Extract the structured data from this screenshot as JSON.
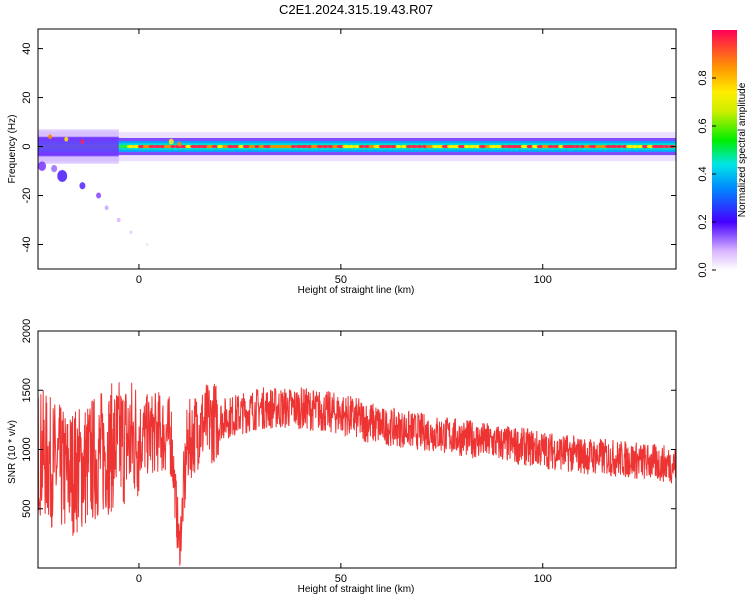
{
  "title": "C2E1.2024.315.19.43.R07",
  "chart_data": [
    {
      "type": "heatmap",
      "xlabel": "Height of straight line (km)",
      "ylabel": "Frequency (Hz)",
      "xlim": [
        -25,
        133
      ],
      "ylim": [
        -50,
        48
      ],
      "xticks": [
        "0",
        "50",
        "100"
      ],
      "yticks": [
        "-40",
        "-20",
        "0",
        "20",
        "40"
      ],
      "colorbar": {
        "label": "Normalized spectral amplitude",
        "range": [
          0.0,
          1.0
        ],
        "ticks": [
          "0.0",
          "0.2",
          "0.4",
          "0.6",
          "0.8"
        ]
      },
      "main_line_frequency_hz": 0,
      "grid": false
    },
    {
      "type": "line",
      "xlabel": "Height of straight line (km)",
      "ylabel": "SNR (10 * v/v)",
      "xlim": [
        -25,
        133
      ],
      "ylim": [
        0,
        2000
      ],
      "xticks": [
        "0",
        "50",
        "100"
      ],
      "yticks": [
        "500",
        "1000",
        "1500",
        "2000"
      ],
      "line_color": "#ee3333",
      "grid": false,
      "x": [
        -25,
        -22,
        -18,
        -14,
        -10,
        -5,
        0,
        5,
        8,
        10,
        12,
        15,
        20,
        25,
        30,
        40,
        50,
        60,
        70,
        80,
        90,
        100,
        110,
        120,
        130,
        133
      ],
      "values": [
        1000,
        900,
        800,
        850,
        950,
        1050,
        1100,
        1150,
        1100,
        150,
        1050,
        1200,
        1250,
        1300,
        1350,
        1350,
        1300,
        1200,
        1150,
        1100,
        1050,
        1000,
        950,
        920,
        880,
        870
      ]
    }
  ]
}
